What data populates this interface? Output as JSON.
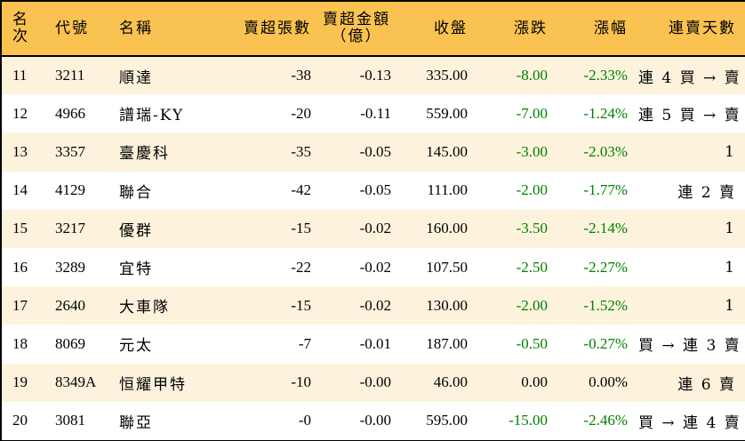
{
  "table": {
    "headers": {
      "rank": "名次",
      "code": "代號",
      "name": "名稱",
      "net_sell_lots": "賣超張數",
      "net_sell_amount_line1": "賣超金額",
      "net_sell_amount_line2": "（億）",
      "close": "收盤",
      "change": "漲跌",
      "change_pct": "漲幅",
      "streak": "連賣天數"
    },
    "rows": [
      {
        "rank": "11",
        "code": "3211",
        "name": "順達",
        "lots": "-38",
        "amount": "-0.13",
        "close": "335.00",
        "change": "-8.00",
        "pct": "-2.33%",
        "streak": "連 4 買 → 賣",
        "color": "green"
      },
      {
        "rank": "12",
        "code": "4966",
        "name": "譜瑞-KY",
        "lots": "-20",
        "amount": "-0.11",
        "close": "559.00",
        "change": "-7.00",
        "pct": "-1.24%",
        "streak": "連 5 買 → 賣",
        "color": "green"
      },
      {
        "rank": "13",
        "code": "3357",
        "name": "臺慶科",
        "lots": "-35",
        "amount": "-0.05",
        "close": "145.00",
        "change": "-3.00",
        "pct": "-2.03%",
        "streak": "1",
        "color": "green"
      },
      {
        "rank": "14",
        "code": "4129",
        "name": "聯合",
        "lots": "-42",
        "amount": "-0.05",
        "close": "111.00",
        "change": "-2.00",
        "pct": "-1.77%",
        "streak": "連 2 賣",
        "color": "green"
      },
      {
        "rank": "15",
        "code": "3217",
        "name": "優群",
        "lots": "-15",
        "amount": "-0.02",
        "close": "160.00",
        "change": "-3.50",
        "pct": "-2.14%",
        "streak": "1",
        "color": "green"
      },
      {
        "rank": "16",
        "code": "3289",
        "name": "宜特",
        "lots": "-22",
        "amount": "-0.02",
        "close": "107.50",
        "change": "-2.50",
        "pct": "-2.27%",
        "streak": "1",
        "color": "green"
      },
      {
        "rank": "17",
        "code": "2640",
        "name": "大車隊",
        "lots": "-15",
        "amount": "-0.02",
        "close": "130.00",
        "change": "-2.00",
        "pct": "-1.52%",
        "streak": "1",
        "color": "green"
      },
      {
        "rank": "18",
        "code": "8069",
        "name": "元太",
        "lots": "-7",
        "amount": "-0.01",
        "close": "187.00",
        "change": "-0.50",
        "pct": "-0.27%",
        "streak": "買 → 連 3 賣",
        "color": "green"
      },
      {
        "rank": "19",
        "code": "8349A",
        "name": "恒耀甲特",
        "lots": "-10",
        "amount": "-0.00",
        "close": "46.00",
        "change": "0.00",
        "pct": "0.00%",
        "streak": "連 6 賣",
        "color": "neutral"
      },
      {
        "rank": "20",
        "code": "3081",
        "name": "聯亞",
        "lots": "-0",
        "amount": "-0.00",
        "close": "595.00",
        "change": "-15.00",
        "pct": "-2.46%",
        "streak": "買 → 連 4 賣",
        "color": "green"
      }
    ]
  },
  "colors": {
    "header_bg": "#fac251",
    "row_odd_bg": "#fdf3dd",
    "row_even_bg": "#ffffff",
    "down_color": "#008000",
    "border": "#000000"
  }
}
